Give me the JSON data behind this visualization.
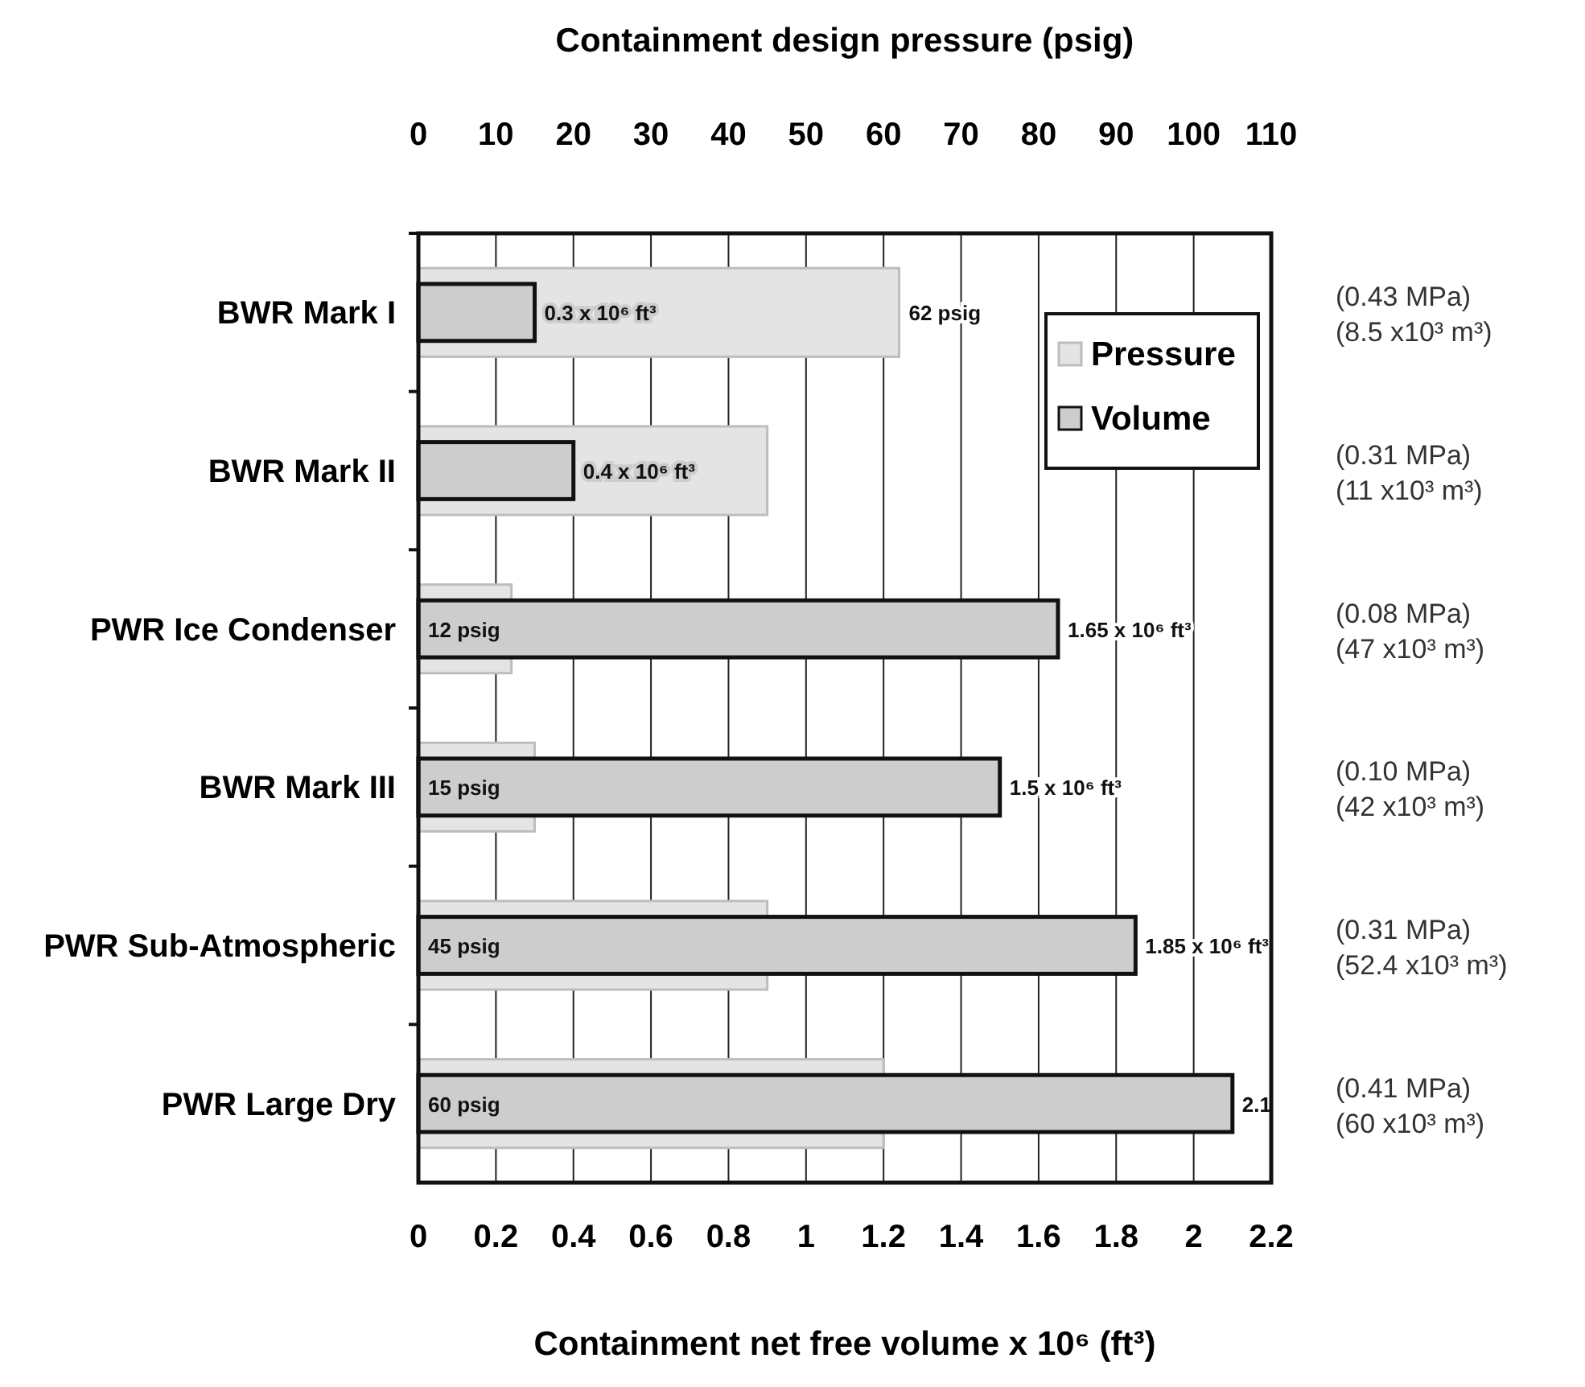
{
  "chart_data": {
    "type": "bar",
    "orientation": "horizontal",
    "x2label": "Containment design pressure (psig)",
    "xlabel": "Containment net free volume x 10⁶ (ft³)",
    "categories": [
      "BWR Mark I",
      "BWR Mark II",
      "PWR Ice Condenser",
      "BWR Mark III",
      "PWR Sub-Atmospheric",
      "PWR Large Dry"
    ],
    "series": [
      {
        "name": "Pressure",
        "axis": "x2",
        "color": "#e4e4e4",
        "values": [
          62,
          45,
          12,
          15,
          45,
          60
        ],
        "value_labels": [
          "62 psig",
          null,
          "12 psig",
          "15 psig",
          "45 psig",
          "60 psig"
        ]
      },
      {
        "name": "Volume",
        "color": "#cdcdcd",
        "values": [
          0.3,
          0.4,
          1.65,
          1.5,
          1.85,
          2.1
        ],
        "value_labels": [
          "0.3 x 10⁶ ft³",
          "0.4 x 10⁶ ft³",
          "1.65 x 10⁶ ft³",
          "1.5 x 10⁶ ft³",
          "1.85 x 10⁶ ft³",
          "2.1"
        ]
      }
    ],
    "xlim": [
      0,
      2.2
    ],
    "xticks": [
      0,
      0.2,
      0.4,
      0.6,
      0.8,
      1,
      1.2,
      1.4,
      1.6,
      1.8,
      2,
      2.2
    ],
    "x2lim": [
      0,
      110
    ],
    "x2ticks": [
      0,
      10,
      20,
      30,
      40,
      50,
      60,
      70,
      80,
      90,
      100,
      110
    ],
    "grid": "x",
    "legend": "top right",
    "annotations": [
      "(0.43 MPa)",
      "(8.5 x10³ m³)",
      "(0.31 MPa)",
      "(11 x10³ m³)",
      "(0.08 MPa)",
      "(47 x10³ m³)",
      "(0.10 MPa)",
      "(42 x10³ m³)",
      "(0.31 MPa)",
      "(52.4 x10³ m³)",
      "(0.41 MPa)",
      "(60 x10³ m³)"
    ]
  }
}
